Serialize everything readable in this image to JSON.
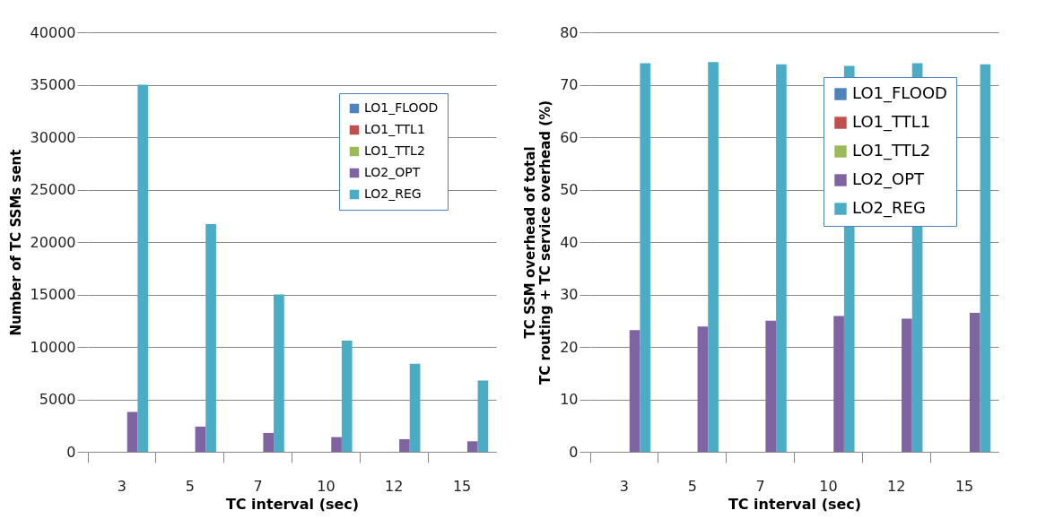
{
  "chart_data": [
    {
      "type": "bar",
      "xlabel": "TC interval (sec)",
      "ylabel": "Number of TC SSMs sent",
      "categories": [
        "3",
        "5",
        "7",
        "10",
        "12",
        "15"
      ],
      "series": [
        {
          "name": "LO1_FLOOD",
          "color": "#4f81bd",
          "values": [
            0,
            0,
            0,
            0,
            0,
            0
          ]
        },
        {
          "name": "LO1_TTL1",
          "color": "#c0504d",
          "values": [
            0,
            0,
            0,
            0,
            0,
            0
          ]
        },
        {
          "name": "LO1_TTL2",
          "color": "#9bbb59",
          "values": [
            0,
            0,
            0,
            0,
            0,
            0
          ]
        },
        {
          "name": "LO2_OPT",
          "color": "#8064a2",
          "values": [
            3800,
            2400,
            1800,
            1400,
            1200,
            1000
          ]
        },
        {
          "name": "LO2_REG",
          "color": "#4bacc6",
          "values": [
            35000,
            21700,
            15000,
            10600,
            8400,
            6800
          ]
        }
      ],
      "ylim": [
        0,
        40000
      ],
      "yticks": [
        0,
        5000,
        10000,
        15000,
        20000,
        25000,
        30000,
        35000,
        40000
      ],
      "grid": "y",
      "legend": "top right"
    },
    {
      "type": "bar",
      "xlabel": "TC interval (sec)",
      "ylabel": "TC SSM overhead of total\nTC routing + TC service overhead (%)",
      "categories": [
        "3",
        "5",
        "7",
        "10",
        "12",
        "15"
      ],
      "series": [
        {
          "name": "LO1_FLOOD",
          "color": "#4f81bd",
          "values": [
            0,
            0,
            0,
            0,
            0,
            0
          ]
        },
        {
          "name": "LO1_TTL1",
          "color": "#c0504d",
          "values": [
            0,
            0,
            0,
            0,
            0,
            0
          ]
        },
        {
          "name": "LO1_TTL2",
          "color": "#9bbb59",
          "values": [
            0,
            0,
            0,
            0,
            0,
            0
          ]
        },
        {
          "name": "LO2_OPT",
          "color": "#8064a2",
          "values": [
            23.2,
            23.9,
            25.0,
            25.9,
            25.4,
            26.5
          ]
        },
        {
          "name": "LO2_REG",
          "color": "#4bacc6",
          "values": [
            74.1,
            74.3,
            73.9,
            73.6,
            74.1,
            73.9
          ]
        }
      ],
      "ylim": [
        0,
        80
      ],
      "yticks": [
        0,
        10,
        20,
        30,
        40,
        50,
        60,
        70,
        80
      ],
      "grid": "y",
      "legend": "right"
    }
  ]
}
